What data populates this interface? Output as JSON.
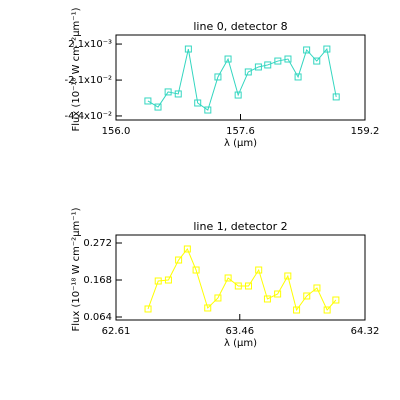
{
  "chart_data": [
    {
      "type": "line",
      "title": "line 0, detector 8",
      "x_label": "λ (μm)",
      "y_label": "Flux (10⁻¹⁸ W cm⁻²μm⁻¹)",
      "color": "#33d6c0",
      "marker": "square",
      "x": [
        156.41,
        156.54,
        156.67,
        156.8,
        156.93,
        157.05,
        157.18,
        157.31,
        157.44,
        157.57,
        157.7,
        157.83,
        157.95,
        158.08,
        158.21,
        158.34,
        158.45,
        158.58,
        158.71,
        158.83
      ],
      "values": [
        -0.0344,
        -0.0383,
        -0.0286,
        -0.0299,
        -0.0011,
        -0.0357,
        -0.0402,
        -0.019,
        -0.0075,
        -0.0306,
        -0.0158,
        -0.0126,
        -0.0113,
        -0.0088,
        -0.0075,
        -0.019,
        -0.0017,
        -0.0088,
        -0.0011,
        -0.0318
      ],
      "xlim": [
        156.0,
        159.2
      ],
      "xticks": [
        {
          "value": 156.0,
          "label": "156.0"
        },
        157.6,
        159.2
      ],
      "ylim": [
        -0.0466,
        0.0079
      ],
      "yticks": [
        {
          "value": 0.0021,
          "label": "2.1x10⁻³"
        },
        {
          "value": -0.021,
          "label": "-2.1x10⁻²"
        },
        {
          "value": -0.044,
          "label": "-4.4x10⁻²"
        }
      ]
    },
    {
      "type": "line",
      "title": "line 1, detector 2",
      "x_label": "λ (μm)",
      "y_label": "Flux (10⁻¹⁸ W cm⁻²μm⁻¹)",
      "color": "#ffff00",
      "marker": "square",
      "x": [
        62.83,
        62.9,
        62.97,
        63.04,
        63.1,
        63.16,
        63.24,
        63.31,
        63.38,
        63.45,
        63.52,
        63.59,
        63.65,
        63.72,
        63.79,
        63.85,
        63.92,
        63.99,
        64.06,
        64.12
      ],
      "values": [
        0.0866,
        0.1652,
        0.168,
        0.2242,
        0.2552,
        0.1961,
        0.0894,
        0.1175,
        0.1737,
        0.1512,
        0.1512,
        0.1961,
        0.1147,
        0.1287,
        0.1793,
        0.0837,
        0.1231,
        0.1456,
        0.0837,
        0.1118
      ],
      "xlim": [
        62.61,
        64.32
      ],
      "xticks": [
        62.61,
        63.46,
        64.32
      ],
      "ylim": [
        0.0556,
        0.2945
      ],
      "yticks": [
        0.272,
        0.168,
        0.064
      ]
    }
  ]
}
